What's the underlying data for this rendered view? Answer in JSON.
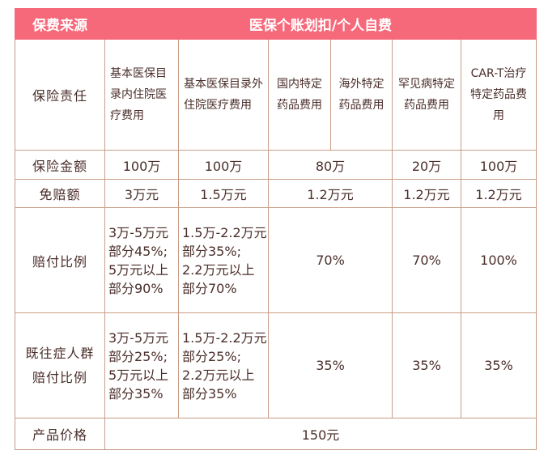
{
  "header": {
    "source_label": "保费来源",
    "source_value": "医保个账划扣/个人自费"
  },
  "rows": {
    "responsibility": {
      "label": "保险责任",
      "items": [
        "基本医保目录内住院医疗费用",
        "基本医保目录外住院医疗费用",
        "国内特定药品费用",
        "海外特定药品费用",
        "罕见病特定药品费用",
        "CAR-T治疗特定药品费用"
      ]
    },
    "amount": {
      "label": "保险金额",
      "values": [
        "100万",
        "100万",
        "80万",
        "20万",
        "100万"
      ]
    },
    "deductible": {
      "label": "免赔额",
      "values": [
        "3万元",
        "1.5万元",
        "1.2万元",
        "1.2万元",
        "1.2万元"
      ]
    },
    "ratio": {
      "label": "赔付比例",
      "col1": [
        "3万-5万元",
        "部分45%;",
        "5万元以上",
        "部分90%"
      ],
      "col2": [
        "1.5万-2.2万元",
        "部分35%;",
        "2.2万元以上",
        "部分70%"
      ],
      "drug": "70%",
      "rare": "70%",
      "cart": "100%"
    },
    "preexisting": {
      "label_line1": "既往症人群",
      "label_line2": "赔付比例",
      "col1": [
        "3万-5万元",
        "部分25%;",
        "5万元以上",
        "部分35%"
      ],
      "col2": [
        "1.5万-2.2万元",
        "部分25%;",
        "2.2万元以上",
        "部分35%"
      ],
      "drug": "35%",
      "rare": "35%",
      "cart": "35%"
    },
    "price": {
      "label": "产品价格",
      "value": "150元"
    }
  },
  "colors": {
    "header_bg": "#f6697a",
    "border": "#c89c86",
    "text": "#4a2e2a"
  }
}
